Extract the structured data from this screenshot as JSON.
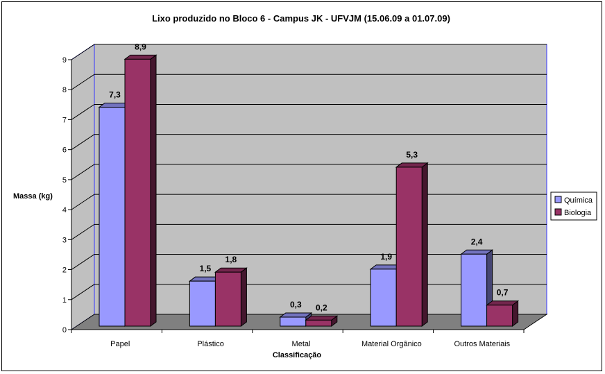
{
  "chart_data": {
    "type": "bar",
    "title": "Lixo produzido no Bloco 6 - Campus JK - UFVJM (15.06.09 a 01.07.09)",
    "xlabel": "Classificação",
    "ylabel": "Massa (kg)",
    "categories": [
      "Papel",
      "Plástico",
      "Metal",
      "Material Orgânico",
      "Outros Materiais"
    ],
    "series": [
      {
        "name": "Química",
        "values": [
          7.3,
          1.5,
          0.3,
          1.9,
          2.4
        ],
        "labels": [
          "7,3",
          "1,5",
          "0,3",
          "1,9",
          "2,4"
        ],
        "color": "#9999FF"
      },
      {
        "name": "Biologia",
        "values": [
          8.9,
          1.8,
          0.2,
          5.3,
          0.7
        ],
        "labels": [
          "8,9",
          "1,8",
          "0,2",
          "5,3",
          "0,7"
        ],
        "color": "#993366"
      }
    ],
    "ylim": [
      0,
      9
    ],
    "yticks": [
      "0",
      "1",
      "2",
      "3",
      "4",
      "5",
      "6",
      "7",
      "8",
      "9"
    ],
    "grid": true,
    "three_d": true,
    "legend_position": "right",
    "colors": {
      "plot_back": "#C0C0C0",
      "floor": "#808080",
      "wall_edge": "#3333FF"
    }
  }
}
